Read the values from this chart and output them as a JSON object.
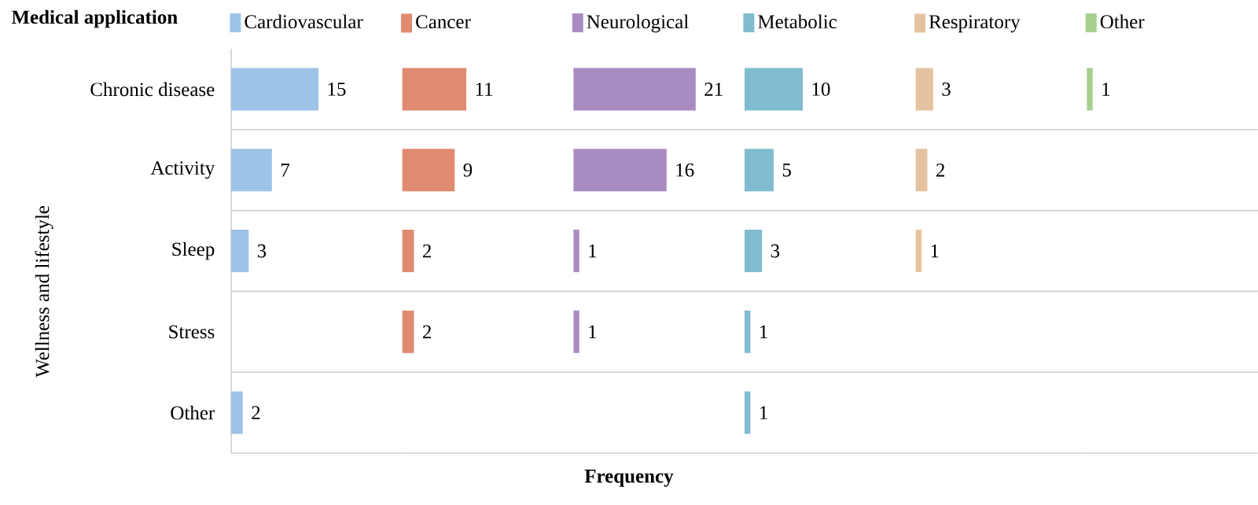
{
  "chart_data": [
    {
      "type": "bar",
      "orientation": "horizontal",
      "legend_title": "Medical application",
      "legend": "top",
      "ylabel": "Wellness and lifestyle",
      "grid": "y",
      "data_labels": true,
      "tick_labels": "y",
      "categories": [
        "Chronic disease",
        "Activity",
        "Sleep",
        "Stress",
        "Other"
      ],
      "series": [
        {
          "name": "Cardiovascular",
          "color": "#9dc3e6",
          "values": [
            15,
            7,
            3,
            null,
            2
          ]
        }
      ]
    },
    {
      "type": "bar",
      "orientation": "horizontal",
      "legend": "top",
      "grid": "y",
      "data_labels": true,
      "series": [
        {
          "name": "Cancer",
          "color": "#e08a70",
          "values": [
            11,
            9,
            2,
            2,
            null
          ]
        }
      ]
    },
    {
      "type": "bar",
      "orientation": "horizontal",
      "legend": "top",
      "xlabel": "Frequency",
      "grid": "y",
      "data_labels": true,
      "series": [
        {
          "name": "Neurological",
          "color": "#a98bc4",
          "values": [
            21,
            16,
            1,
            1,
            null
          ]
        }
      ]
    },
    {
      "type": "bar",
      "orientation": "horizontal",
      "legend": "top",
      "grid": "y",
      "data_labels": true,
      "series": [
        {
          "name": "Metabolic",
          "color": "#7fbccf",
          "values": [
            10,
            5,
            3,
            1,
            1
          ]
        }
      ]
    },
    {
      "type": "bar",
      "orientation": "horizontal",
      "legend": "top",
      "grid": "y",
      "data_labels": true,
      "series": [
        {
          "name": "Respiratory",
          "color": "#e6c3a0",
          "values": [
            3,
            2,
            1,
            null,
            null
          ]
        }
      ]
    },
    {
      "type": "bar",
      "orientation": "horizontal",
      "legend": "top",
      "grid": "y",
      "data_labels": true,
      "series": [
        {
          "name": "Other",
          "color": "#a6d08e",
          "values": [
            1,
            null,
            null,
            null,
            null
          ]
        }
      ]
    }
  ]
}
